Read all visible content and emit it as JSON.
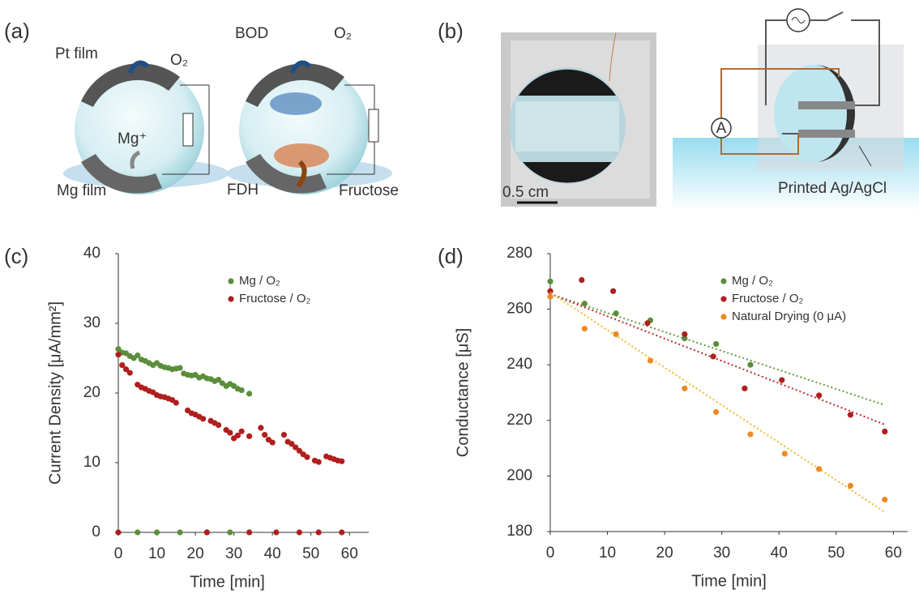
{
  "panels": {
    "a": {
      "label": "(a)",
      "pt_film": "Pt film",
      "o2_left": "O₂",
      "mg_ion": "Mg⁺",
      "mg_film": "Mg film",
      "bod": "BOD",
      "o2_right": "O₂",
      "fdh": "FDH",
      "fructose": "Fructose"
    },
    "b": {
      "label": "(b)",
      "scale_bar": "0.5 cm",
      "ammeter": "A",
      "printed": "Printed Ag/AgCl"
    },
    "c": {
      "label": "(c)"
    },
    "d": {
      "label": "(d)"
    }
  },
  "chart_data": [
    {
      "type": "scatter",
      "xlabel": "Time [min]",
      "ylabel": "Current Density [μA/mm²]",
      "xlim": [
        0,
        65
      ],
      "ylim": [
        0,
        40
      ],
      "xticks": [
        0,
        10,
        20,
        30,
        40,
        50,
        60
      ],
      "yticks": [
        0,
        10,
        20,
        30,
        40
      ],
      "series": [
        {
          "name": "Mg / O₂",
          "color": "#5b8e3b",
          "x": [
            0,
            1,
            2,
            3,
            4,
            5,
            6,
            7,
            8,
            9,
            10,
            11,
            12,
            13,
            14,
            15,
            16,
            17,
            18,
            19,
            20,
            21,
            22,
            23,
            24,
            25,
            26,
            27,
            28,
            29,
            30,
            31,
            32,
            34,
            5,
            10,
            16,
            23,
            29
          ],
          "values": [
            26.3,
            25.8,
            25.7,
            25.3,
            25.0,
            25.4,
            24.8,
            24.6,
            24.3,
            24.0,
            24.3,
            23.9,
            23.7,
            23.6,
            23.4,
            23.5,
            23.6,
            22.8,
            22.6,
            22.5,
            22.6,
            22.2,
            22.4,
            22.1,
            22.0,
            21.7,
            21.9,
            21.4,
            21.0,
            21.3,
            21.0,
            20.6,
            20.4,
            19.9,
            0,
            0,
            0,
            0,
            0
          ]
        },
        {
          "name": "Fructose / O₂",
          "color": "#b01e1e",
          "x": [
            0,
            1,
            2,
            3,
            5,
            6,
            7,
            8,
            9,
            10,
            11,
            12,
            13,
            14,
            15,
            18,
            19,
            20,
            21,
            22,
            24,
            25,
            26,
            28,
            29,
            30,
            31,
            32,
            34,
            37,
            38,
            39,
            40,
            43,
            44,
            45,
            46,
            47,
            48,
            49,
            51,
            52,
            54,
            55,
            56,
            57,
            58,
            0,
            23,
            34,
            41,
            47,
            52,
            58
          ],
          "values": [
            25.5,
            24.0,
            23.4,
            22.9,
            21.2,
            20.8,
            20.6,
            20.3,
            20.1,
            19.7,
            19.5,
            19.4,
            19.2,
            19.0,
            18.6,
            17.5,
            17.1,
            16.9,
            16.6,
            16.3,
            16.0,
            15.7,
            15.4,
            14.7,
            14.3,
            13.5,
            13.9,
            14.5,
            13.8,
            15.0,
            14.0,
            13.3,
            12.9,
            14.0,
            13.0,
            12.7,
            12.2,
            11.7,
            11.2,
            10.8,
            10.3,
            10.1,
            10.9,
            10.7,
            10.5,
            10.3,
            10.2,
            0,
            0,
            0,
            0,
            0,
            0,
            0
          ]
        }
      ]
    },
    {
      "type": "scatter",
      "xlabel": "Time [min]",
      "ylabel": "Conductance [μS]",
      "xlim": [
        0,
        62.5
      ],
      "ylim": [
        180,
        280
      ],
      "xticks": [
        0,
        10,
        20,
        30,
        40,
        50,
        60
      ],
      "yticks": [
        180,
        200,
        220,
        240,
        260,
        280
      ],
      "series": [
        {
          "name": "Mg / O₂",
          "color": "#5b8e3b",
          "x": [
            0,
            6,
            11.5,
            17.5,
            23.5,
            29,
            35
          ],
          "values": [
            270,
            262,
            258.5,
            256,
            249.5,
            247.5,
            240
          ],
          "trend": {
            "color": "#5f9b3e",
            "x": [
              0,
              58.5
            ],
            "values": [
              265.5,
              225.5
            ]
          }
        },
        {
          "name": "Fructose / O₂",
          "color": "#b01e1e",
          "x": [
            0,
            5.5,
            11,
            17,
            23.5,
            28.5,
            34,
            40.5,
            47,
            52.5,
            58.5
          ],
          "values": [
            266.5,
            270.5,
            266.5,
            255,
            251,
            243,
            231.5,
            234.5,
            229,
            222,
            216
          ],
          "trend": {
            "color": "#c0282b",
            "x": [
              0,
              58.5
            ],
            "values": [
              265.5,
              218.5
            ]
          }
        },
        {
          "name": "Natural Drying (0 μA)",
          "color": "#ee8a22",
          "x": [
            0,
            6,
            11.5,
            17.5,
            23.5,
            29,
            35,
            41,
            47,
            52.5,
            58.5
          ],
          "values": [
            264.5,
            253,
            251,
            241.5,
            231.5,
            223,
            215,
            208,
            202.5,
            196.5,
            191.5
          ],
          "trend": {
            "color": "#f3b62b",
            "x": [
              0,
              58.5
            ],
            "values": [
              266,
              187
            ]
          }
        }
      ]
    }
  ]
}
